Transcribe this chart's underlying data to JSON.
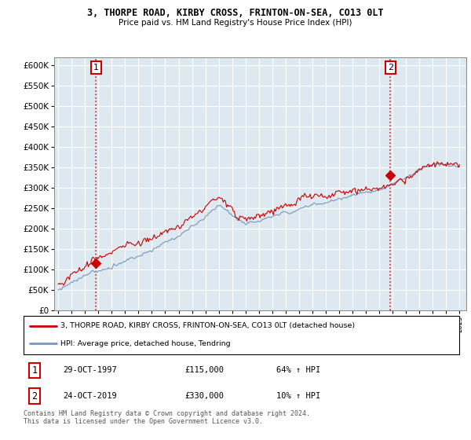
{
  "title": "3, THORPE ROAD, KIRBY CROSS, FRINTON-ON-SEA, CO13 0LT",
  "subtitle": "Price paid vs. HM Land Registry's House Price Index (HPI)",
  "ylim": [
    0,
    620000
  ],
  "yticks": [
    0,
    50000,
    100000,
    150000,
    200000,
    250000,
    300000,
    350000,
    400000,
    450000,
    500000,
    550000,
    600000
  ],
  "background_color": "#ffffff",
  "plot_bg_color": "#dde8f0",
  "grid_color": "#ffffff",
  "sale1_t": 1997.833,
  "sale1_p": 115000,
  "sale2_t": 2019.833,
  "sale2_p": 330000,
  "legend_line1": "3, THORPE ROAD, KIRBY CROSS, FRINTON-ON-SEA, CO13 0LT (detached house)",
  "legend_line2": "HPI: Average price, detached house, Tendring",
  "footer": "Contains HM Land Registry data © Crown copyright and database right 2024.\nThis data is licensed under the Open Government Licence v3.0.",
  "house_color": "#cc0000",
  "hpi_color": "#7799bb",
  "dashed_color": "#cc0000",
  "xlim_left": 1994.7,
  "xlim_right": 2025.5
}
